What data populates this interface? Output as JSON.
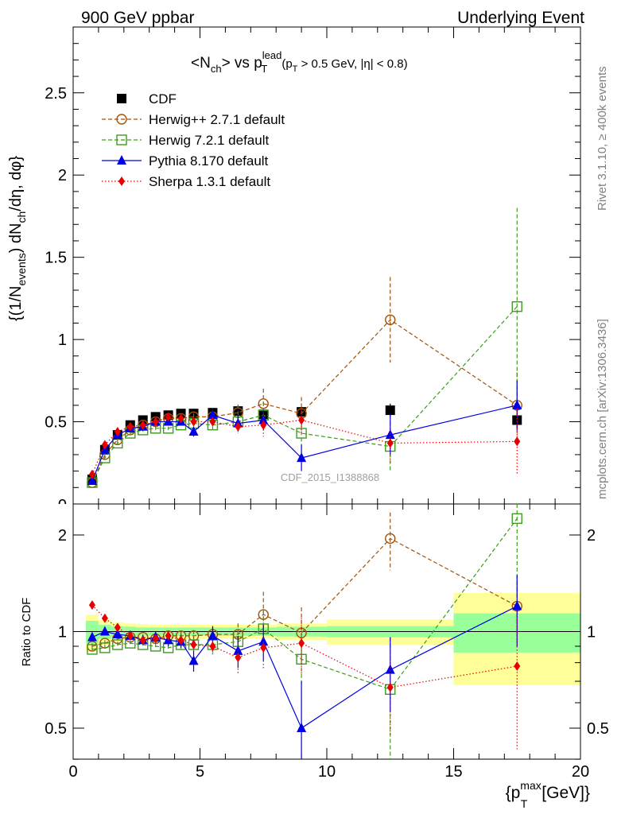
{
  "header": {
    "left": "900 GeV ppbar",
    "right": "Underlying Event"
  },
  "side_labels": {
    "rivet": "Rivet 3.1.10, ≥ 400k events",
    "mcplots": "mcplots.cern.ch [arXiv:1306.3436]"
  },
  "chart_data": [
    {
      "type": "scatter",
      "panel": "main",
      "title": "<N_ch> vs p_T^lead (p_T > 0.5 GeV, |η| < 0.8)",
      "ylabel": "{(1/N_events) dN_ch/dη, dφ}",
      "xlim": [
        0,
        20
      ],
      "ylim": [
        0,
        2.9
      ],
      "yticks": [
        "0.5",
        "1",
        "1.5",
        "2",
        "2.5"
      ],
      "ytick_values": [
        0.5,
        1,
        1.5,
        2,
        2.5
      ],
      "watermark": "CDF_2015_I1388868",
      "legend_position": "top-left",
      "x": [
        0.75,
        1.25,
        1.75,
        2.25,
        2.75,
        3.25,
        3.75,
        4.25,
        4.75,
        5.5,
        6.5,
        7.5,
        9.0,
        12.5,
        17.5
      ],
      "series": [
        {
          "name": "CDF",
          "color": "#000000",
          "marker": "square-filled",
          "line": "none",
          "x": [
            0.75,
            1.25,
            1.75,
            2.25,
            2.75,
            3.25,
            3.75,
            4.25,
            4.75,
            5.5,
            6.5,
            7.5,
            9.0,
            12.5,
            17.5
          ],
          "values": [
            0.15,
            0.33,
            0.42,
            0.48,
            0.51,
            0.53,
            0.54,
            0.55,
            0.55,
            0.555,
            0.565,
            0.545,
            0.56,
            0.57,
            0.51
          ],
          "err": [
            0.01,
            0.01,
            0.01,
            0.01,
            0.01,
            0.01,
            0.01,
            0.01,
            0.01,
            0.015,
            0.02,
            0.03,
            0.03,
            0.04,
            0.05
          ]
        },
        {
          "name": "Herwig++ 2.7.1 default",
          "color": "#a0520a",
          "marker": "circle-open",
          "line": "dashed",
          "x": [
            0.75,
            1.25,
            1.75,
            2.25,
            2.75,
            3.25,
            3.75,
            4.25,
            4.75,
            5.5,
            6.5,
            7.5,
            9.0,
            12.5,
            17.5
          ],
          "values": [
            0.13,
            0.3,
            0.39,
            0.45,
            0.48,
            0.5,
            0.52,
            0.52,
            0.53,
            0.53,
            0.555,
            0.61,
            0.55,
            1.12,
            0.6
          ],
          "err": [
            0.01,
            0.01,
            0.01,
            0.01,
            0.01,
            0.01,
            0.01,
            0.02,
            0.02,
            0.03,
            0.05,
            0.09,
            0.1,
            0.26,
            0.2
          ]
        },
        {
          "name": "Herwig 7.2.1 default",
          "color": "#3e9c1c",
          "marker": "square-open",
          "line": "dashed",
          "x": [
            0.75,
            1.25,
            1.75,
            2.25,
            2.75,
            3.25,
            3.75,
            4.25,
            4.75,
            5.5,
            6.5,
            7.5,
            9.0,
            12.5,
            17.5
          ],
          "values": [
            0.13,
            0.28,
            0.37,
            0.43,
            0.45,
            0.46,
            0.46,
            0.48,
            0.49,
            0.48,
            0.5,
            0.54,
            0.43,
            0.35,
            1.2
          ],
          "err": [
            0.01,
            0.01,
            0.01,
            0.01,
            0.01,
            0.01,
            0.01,
            0.02,
            0.02,
            0.03,
            0.04,
            0.08,
            0.09,
            0.15,
            0.6
          ]
        },
        {
          "name": "Pythia 8.170 default",
          "color": "#0000e6",
          "marker": "triangle-filled",
          "line": "solid",
          "x": [
            0.75,
            1.25,
            1.75,
            2.25,
            2.75,
            3.25,
            3.75,
            4.25,
            4.75,
            5.5,
            6.5,
            7.5,
            9.0,
            12.5,
            17.5
          ],
          "values": [
            0.14,
            0.33,
            0.42,
            0.46,
            0.47,
            0.5,
            0.5,
            0.5,
            0.44,
            0.54,
            0.49,
            0.51,
            0.28,
            0.42,
            0.6
          ],
          "err": [
            0.01,
            0.01,
            0.01,
            0.01,
            0.01,
            0.02,
            0.02,
            0.02,
            0.03,
            0.04,
            0.05,
            0.06,
            0.08,
            0.12,
            0.15
          ]
        },
        {
          "name": "Sherpa 1.3.1 default",
          "color": "#e80000",
          "marker": "diamond-filled",
          "line": "dotted",
          "x": [
            0.75,
            1.25,
            1.75,
            2.25,
            2.75,
            3.25,
            3.75,
            4.25,
            4.75,
            5.5,
            6.5,
            7.5,
            9.0,
            12.5,
            17.5
          ],
          "values": [
            0.18,
            0.36,
            0.44,
            0.47,
            0.48,
            0.5,
            0.53,
            0.52,
            0.5,
            0.5,
            0.47,
            0.48,
            0.51,
            0.37,
            0.38
          ],
          "err": [
            0.01,
            0.01,
            0.01,
            0.01,
            0.01,
            0.01,
            0.02,
            0.02,
            0.02,
            0.03,
            0.04,
            0.07,
            0.08,
            0.12,
            0.2
          ]
        }
      ]
    },
    {
      "type": "scatter",
      "panel": "ratio",
      "ylabel": "Ratio to CDF",
      "xlabel": "{p_T^max [GeV]}",
      "xlim": [
        0,
        20
      ],
      "ylim": [
        0.35,
        2.3
      ],
      "xticks": [
        "0",
        "5",
        "10",
        "15",
        "20"
      ],
      "xtick_values": [
        0,
        5,
        10,
        15,
        20
      ],
      "yticks": [
        "0.5",
        "1",
        "2"
      ],
      "ytick_values": [
        0.5,
        1,
        2
      ],
      "reference_line": 1,
      "bands": [
        {
          "x": [
            0.5,
            1.0,
            1.5,
            2.0,
            2.5,
            3.0,
            3.5,
            4.0,
            4.5,
            5.0,
            6.0,
            7.0,
            8.0,
            10.0,
            15.0
          ],
          "x_end": [
            1.0,
            1.5,
            2.0,
            2.5,
            3.0,
            3.5,
            4.0,
            4.5,
            5.0,
            6.0,
            7.0,
            8.0,
            10.0,
            15.0,
            20.0
          ],
          "inner": [
            0.08,
            0.05,
            0.04,
            0.035,
            0.03,
            0.03,
            0.03,
            0.03,
            0.03,
            0.03,
            0.03,
            0.03,
            0.035,
            0.04,
            0.14
          ],
          "outer": [
            0.13,
            0.09,
            0.07,
            0.06,
            0.055,
            0.05,
            0.05,
            0.05,
            0.05,
            0.05,
            0.05,
            0.05,
            0.06,
            0.09,
            0.32
          ]
        }
      ],
      "series": [
        {
          "name": "Herwig++ 2.7.1 default",
          "color": "#a0520a",
          "marker": "circle-open",
          "line": "dashed",
          "x": [
            0.75,
            1.25,
            1.75,
            2.25,
            2.75,
            3.25,
            3.75,
            4.25,
            4.75,
            5.5,
            6.5,
            7.5,
            9.0,
            12.5,
            17.5
          ],
          "values": [
            0.9,
            0.92,
            0.95,
            0.96,
            0.96,
            0.95,
            0.97,
            0.97,
            0.97,
            0.98,
            0.98,
            1.13,
            0.99,
            1.95,
            1.2
          ],
          "err": [
            0.02,
            0.02,
            0.02,
            0.02,
            0.02,
            0.02,
            0.02,
            0.03,
            0.04,
            0.05,
            0.08,
            0.2,
            0.2,
            0.4,
            0.3
          ]
        },
        {
          "name": "Herwig 7.2.1 default",
          "color": "#3e9c1c",
          "marker": "square-open",
          "line": "dashed",
          "x": [
            0.75,
            1.25,
            1.75,
            2.25,
            2.75,
            3.25,
            3.75,
            4.25,
            4.75,
            5.5,
            6.5,
            7.5,
            9.0,
            12.5,
            17.5
          ],
          "values": [
            0.88,
            0.89,
            0.91,
            0.92,
            0.91,
            0.9,
            0.89,
            0.91,
            0.91,
            0.91,
            0.93,
            1.02,
            0.82,
            0.66,
            2.25
          ],
          "err": [
            0.02,
            0.02,
            0.02,
            0.02,
            0.02,
            0.02,
            0.02,
            0.03,
            0.04,
            0.05,
            0.08,
            0.15,
            0.15,
            0.3,
            0.9
          ]
        },
        {
          "name": "Pythia 8.170 default",
          "color": "#0000e6",
          "marker": "triangle-filled",
          "line": "solid",
          "x": [
            0.75,
            1.25,
            1.75,
            2.25,
            2.75,
            3.25,
            3.75,
            4.25,
            4.75,
            5.5,
            6.5,
            7.5,
            9.0,
            12.5,
            17.5
          ],
          "values": [
            0.96,
            1.0,
            0.98,
            0.97,
            0.94,
            0.96,
            0.94,
            0.93,
            0.81,
            0.97,
            0.87,
            0.93,
            0.5,
            0.76,
            1.2
          ],
          "err": [
            0.02,
            0.02,
            0.02,
            0.02,
            0.03,
            0.04,
            0.04,
            0.04,
            0.06,
            0.07,
            0.1,
            0.12,
            0.2,
            0.2,
            0.3
          ]
        },
        {
          "name": "Sherpa 1.3.1 default",
          "color": "#e80000",
          "marker": "diamond-filled",
          "line": "dotted",
          "x": [
            0.75,
            1.25,
            1.75,
            2.25,
            2.75,
            3.25,
            3.75,
            4.25,
            4.75,
            5.5,
            6.5,
            7.5,
            9.0,
            12.5,
            17.5
          ],
          "values": [
            1.21,
            1.1,
            1.03,
            0.97,
            0.94,
            0.95,
            0.97,
            0.94,
            0.91,
            0.9,
            0.83,
            0.89,
            0.92,
            0.67,
            0.78
          ],
          "err": [
            0.02,
            0.02,
            0.02,
            0.02,
            0.02,
            0.02,
            0.03,
            0.04,
            0.05,
            0.06,
            0.09,
            0.13,
            0.18,
            0.2,
            0.35
          ]
        }
      ]
    }
  ]
}
